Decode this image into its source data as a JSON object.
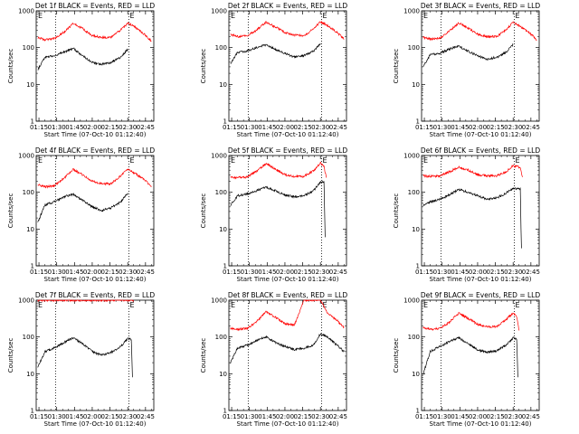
{
  "page": {
    "xlabel": "Start Time (07-Oct-10 01:12:40)",
    "ylabel": "Counts/sec",
    "colors": {
      "events": "#000000",
      "lld": "#ff0000",
      "axis": "#000000"
    }
  },
  "chart_data": [
    {
      "type": "line",
      "title": "Det 1f BLACK = Events, RED = LLD",
      "marker_label": "E",
      "xlim": [
        "01:12:40",
        "02:52:00"
      ],
      "ylim": [
        1,
        1000
      ],
      "yscale": "log",
      "x_ticks": [
        "01:15",
        "01:30",
        "01:45",
        "02:00",
        "02:15",
        "02:30",
        "02:45"
      ],
      "y_ticks": [
        "1",
        "10",
        "100",
        "1000"
      ],
      "vlines": [
        "01:29",
        "02:31"
      ],
      "x": [
        "01:14",
        "01:20",
        "01:28",
        "01:36",
        "01:44",
        "01:52",
        "02:00",
        "02:08",
        "02:16",
        "02:24",
        "02:30",
        "02:36",
        "02:44",
        "02:50"
      ],
      "series": [
        {
          "name": "LLD",
          "values": [
            190,
            165,
            175,
            260,
            450,
            330,
            210,
            190,
            190,
            300,
            460,
            370,
            230,
            150
          ]
        },
        {
          "name": "Events",
          "values": [
            25,
            55,
            60,
            75,
            95,
            60,
            40,
            35,
            40,
            55,
            90,
            null,
            null,
            null
          ]
        }
      ]
    },
    {
      "type": "line",
      "title": "Det 2f BLACK = Events, RED = LLD",
      "marker_label": "E",
      "xlim": [
        "01:12:40",
        "02:52:00"
      ],
      "ylim": [
        1,
        1000
      ],
      "yscale": "log",
      "x_ticks": [
        "01:15",
        "01:30",
        "01:45",
        "02:00",
        "02:15",
        "02:30",
        "02:45"
      ],
      "y_ticks": [
        "1",
        "10",
        "100",
        "1000"
      ],
      "vlines": [
        "01:29",
        "02:31"
      ],
      "x": [
        "01:14",
        "01:20",
        "01:28",
        "01:36",
        "01:44",
        "01:52",
        "02:00",
        "02:08",
        "02:16",
        "02:24",
        "02:30",
        "02:36",
        "02:44",
        "02:50"
      ],
      "series": [
        {
          "name": "LLD",
          "values": [
            230,
            200,
            210,
            300,
            500,
            360,
            260,
            220,
            210,
            320,
            500,
            400,
            260,
            170
          ]
        },
        {
          "name": "Events",
          "values": [
            35,
            75,
            80,
            100,
            120,
            90,
            70,
            55,
            60,
            80,
            130,
            null,
            null,
            null
          ]
        }
      ]
    },
    {
      "type": "line",
      "title": "Det 3f BLACK = Events, RED = LLD",
      "marker_label": "E",
      "xlim": [
        "01:12:40",
        "02:52:00"
      ],
      "ylim": [
        1,
        1000
      ],
      "yscale": "log",
      "x_ticks": [
        "01:15",
        "01:30",
        "01:45",
        "02:00",
        "02:15",
        "02:30",
        "02:45"
      ],
      "y_ticks": [
        "1",
        "10",
        "100",
        "1000"
      ],
      "vlines": [
        "01:29",
        "02:31"
      ],
      "x": [
        "01:14",
        "01:20",
        "01:28",
        "01:36",
        "01:44",
        "01:52",
        "02:00",
        "02:08",
        "02:16",
        "02:24",
        "02:30",
        "02:36",
        "02:44",
        "02:50"
      ],
      "series": [
        {
          "name": "LLD",
          "values": [
            190,
            170,
            180,
            280,
            470,
            340,
            230,
            200,
            200,
            310,
            480,
            380,
            250,
            160
          ]
        },
        {
          "name": "Events",
          "values": [
            30,
            65,
            70,
            90,
            110,
            80,
            60,
            48,
            55,
            75,
            120,
            null,
            null,
            null
          ]
        }
      ]
    },
    {
      "type": "line",
      "title": "Det 4f BLACK = Events, RED = LLD",
      "marker_label": "E",
      "xlim": [
        "01:12:40",
        "02:52:00"
      ],
      "ylim": [
        1,
        1000
      ],
      "yscale": "log",
      "x_ticks": [
        "01:15",
        "01:30",
        "01:45",
        "02:00",
        "02:15",
        "02:30",
        "02:45"
      ],
      "y_ticks": [
        "1",
        "10",
        "100",
        "1000"
      ],
      "vlines": [
        "01:29",
        "02:31"
      ],
      "x": [
        "01:14",
        "01:20",
        "01:28",
        "01:36",
        "01:44",
        "01:52",
        "02:00",
        "02:08",
        "02:16",
        "02:24",
        "02:30",
        "02:36",
        "02:44",
        "02:50"
      ],
      "series": [
        {
          "name": "LLD",
          "values": [
            160,
            140,
            150,
            240,
            420,
            300,
            200,
            170,
            170,
            280,
            420,
            330,
            220,
            140
          ]
        },
        {
          "name": "Events",
          "values": [
            15,
            45,
            55,
            75,
            90,
            60,
            40,
            32,
            38,
            55,
            95,
            null,
            null,
            null
          ]
        }
      ]
    },
    {
      "type": "line",
      "title": "Det 5f BLACK = Events, RED = LLD",
      "marker_label": "E",
      "xlim": [
        "01:12:40",
        "02:52:00"
      ],
      "ylim": [
        1,
        1000
      ],
      "yscale": "log",
      "x_ticks": [
        "01:15",
        "01:30",
        "01:45",
        "02:00",
        "02:15",
        "02:30",
        "02:45"
      ],
      "y_ticks": [
        "1",
        "10",
        "100",
        "1000"
      ],
      "vlines": [
        "01:29",
        "02:31"
      ],
      "x": [
        "01:14",
        "01:20",
        "01:28",
        "01:36",
        "01:44",
        "01:52",
        "02:00",
        "02:08",
        "02:16",
        "02:24",
        "02:30",
        "02:33",
        "02:34",
        "02:35"
      ],
      "series": [
        {
          "name": "LLD",
          "values": [
            260,
            250,
            260,
            380,
            600,
            430,
            300,
            270,
            270,
            380,
            620,
            500,
            340,
            250
          ]
        },
        {
          "name": "Events",
          "values": [
            45,
            80,
            90,
            110,
            140,
            110,
            85,
            75,
            80,
            110,
            190,
            190,
            6,
            null
          ]
        }
      ]
    },
    {
      "type": "line",
      "title": "Det 6f BLACK = Events, RED = LLD",
      "marker_label": "E",
      "xlim": [
        "01:12:40",
        "02:52:00"
      ],
      "ylim": [
        1,
        1000
      ],
      "yscale": "log",
      "x_ticks": [
        "01:15",
        "01:30",
        "01:45",
        "02:00",
        "02:15",
        "02:30",
        "02:45"
      ],
      "y_ticks": [
        "1",
        "10",
        "100",
        "1000"
      ],
      "vlines": [
        "01:29",
        "02:31"
      ],
      "x": [
        "01:14",
        "01:20",
        "01:28",
        "01:36",
        "01:44",
        "01:52",
        "02:00",
        "02:08",
        "02:16",
        "02:24",
        "02:30",
        "02:36",
        "02:37",
        "02:38"
      ],
      "series": [
        {
          "name": "LLD",
          "values": [
            280,
            270,
            280,
            360,
            480,
            400,
            300,
            280,
            280,
            360,
            520,
            480,
            350,
            260
          ]
        },
        {
          "name": "Events",
          "values": [
            45,
            55,
            65,
            85,
            120,
            100,
            80,
            65,
            70,
            95,
            130,
            120,
            3,
            null
          ]
        }
      ]
    },
    {
      "type": "line",
      "title": "Det 7f BLACK = Events, RED = LLD",
      "marker_label": "E",
      "xlim": [
        "01:12:40",
        "02:52:00"
      ],
      "ylim": [
        1,
        1000
      ],
      "yscale": "log",
      "x_ticks": [
        "01:15",
        "01:30",
        "01:45",
        "02:00",
        "02:15",
        "02:30",
        "02:45"
      ],
      "y_ticks": [
        "1",
        "10",
        "100",
        "1000"
      ],
      "vlines": [
        "01:29",
        "02:31"
      ],
      "x": [
        "01:14",
        "01:20",
        "01:28",
        "01:36",
        "01:44",
        "01:52",
        "02:00",
        "02:08",
        "02:16",
        "02:24",
        "02:30",
        "02:33",
        "02:34",
        "02:35"
      ],
      "series": [
        {
          "name": "LLD",
          "values": [
            1000,
            1000,
            1000,
            1000,
            1000,
            1000,
            1000,
            1000,
            1000,
            1000,
            1000,
            1000,
            1000,
            1000
          ]
        },
        {
          "name": "Events",
          "values": [
            15,
            40,
            50,
            70,
            95,
            65,
            40,
            32,
            38,
            55,
            90,
            85,
            8,
            null
          ]
        }
      ]
    },
    {
      "type": "line",
      "title": "Det 8f BLACK = Events, RED = LLD",
      "marker_label": "E",
      "xlim": [
        "01:12:40",
        "02:52:00"
      ],
      "ylim": [
        1,
        1000
      ],
      "yscale": "log",
      "x_ticks": [
        "01:15",
        "01:30",
        "01:45",
        "02:00",
        "02:15",
        "02:30",
        "02:45"
      ],
      "y_ticks": [
        "1",
        "10",
        "100",
        "1000"
      ],
      "vlines": [
        "01:29",
        "02:31"
      ],
      "x": [
        "01:14",
        "01:20",
        "01:28",
        "01:36",
        "01:44",
        "01:52",
        "02:00",
        "02:08",
        "02:16",
        "02:24",
        "02:30",
        "02:36",
        "02:44",
        "02:50"
      ],
      "series": [
        {
          "name": "LLD",
          "values": [
            170,
            160,
            170,
            260,
            480,
            340,
            230,
            210,
            1000,
            1000,
            1000,
            450,
            280,
            180
          ]
        },
        {
          "name": "Events",
          "values": [
            20,
            50,
            60,
            80,
            100,
            70,
            55,
            45,
            50,
            60,
            120,
            100,
            60,
            40
          ]
        }
      ]
    },
    {
      "type": "line",
      "title": "Det 9f BLACK = Events, RED = LLD",
      "marker_label": "E",
      "xlim": [
        "01:12:40",
        "02:52:00"
      ],
      "ylim": [
        1,
        1000
      ],
      "yscale": "log",
      "x_ticks": [
        "01:15",
        "01:30",
        "01:45",
        "02:00",
        "02:15",
        "02:30",
        "02:45"
      ],
      "y_ticks": [
        "1",
        "10",
        "100",
        "1000"
      ],
      "vlines": [
        "01:29",
        "02:31"
      ],
      "x": [
        "01:14",
        "01:20",
        "01:28",
        "01:36",
        "01:44",
        "01:52",
        "02:00",
        "02:08",
        "02:16",
        "02:24",
        "02:30",
        "02:33",
        "02:34",
        "02:35"
      ],
      "series": [
        {
          "name": "LLD",
          "values": [
            180,
            160,
            170,
            250,
            440,
            320,
            220,
            190,
            190,
            300,
            450,
            360,
            240,
            150
          ]
        },
        {
          "name": "Events",
          "values": [
            10,
            40,
            55,
            75,
            95,
            65,
            45,
            38,
            42,
            60,
            95,
            90,
            8,
            null
          ]
        }
      ]
    }
  ]
}
